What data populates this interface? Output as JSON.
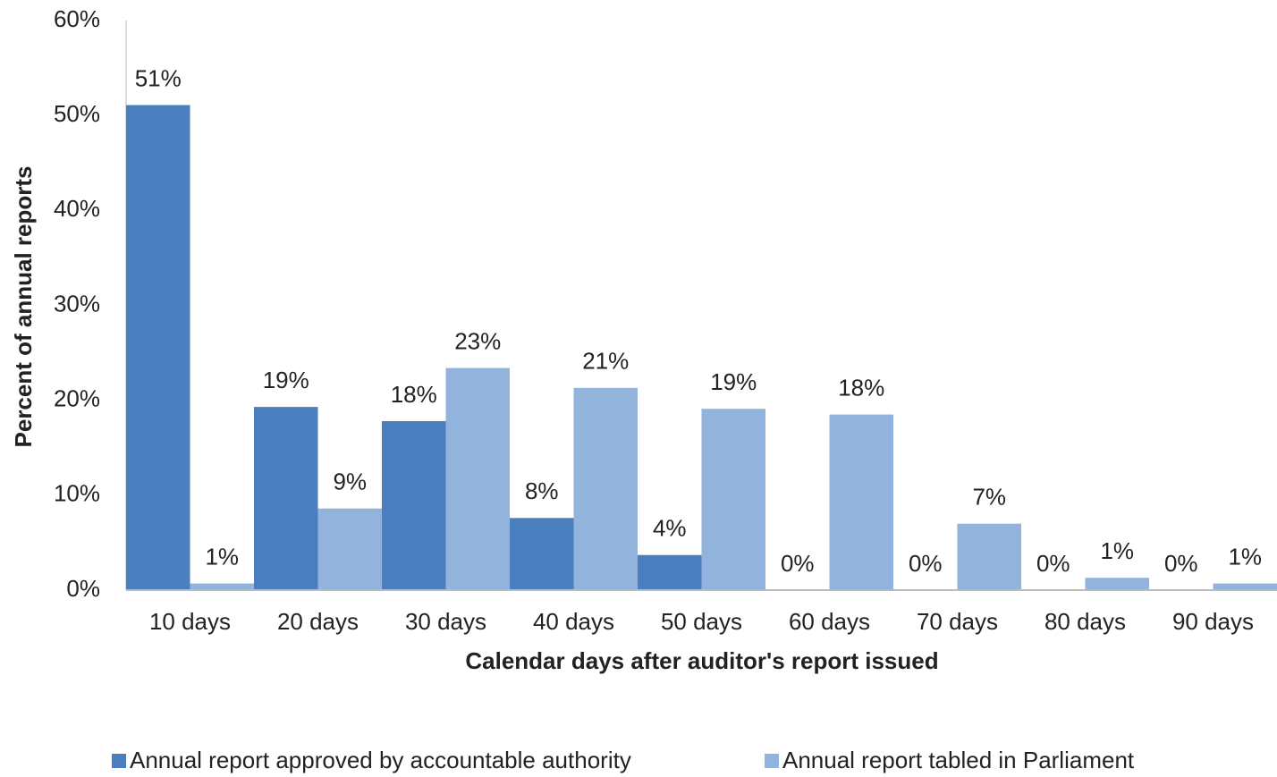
{
  "chart_data": {
    "type": "bar",
    "x_label": "Calendar days after auditor's report issued",
    "y_label": "Percent of annual reports",
    "categories": [
      "10 days",
      "20 days",
      "30 days",
      "40 days",
      "50 days",
      "60 days",
      "70 days",
      "80 days",
      "90 days"
    ],
    "series": [
      {
        "name": "Annual report approved by accountable authority",
        "color": "#4a7ebf",
        "values": [
          51.1,
          19.3,
          17.8,
          7.6,
          3.7,
          0,
          0,
          0,
          0
        ],
        "value_labels": [
          "51%",
          "19%",
          "18%",
          "8%",
          "4%",
          "0%",
          "0%",
          "0%",
          "0%"
        ]
      },
      {
        "name": "Annual report tabled in Parliament",
        "color": "#91b3dc",
        "values": [
          0.7,
          8.6,
          23.4,
          21.3,
          19.1,
          18.5,
          7.0,
          1.3,
          0.7
        ],
        "value_labels": [
          "1%",
          "9%",
          "23%",
          "21%",
          "19%",
          "18%",
          "7%",
          "1%",
          "1%"
        ]
      }
    ],
    "ylim": [
      0,
      60
    ],
    "yticks": [
      {
        "value": 0,
        "label": "0%"
      },
      {
        "value": 10,
        "label": "10%"
      },
      {
        "value": 20,
        "label": "20%"
      },
      {
        "value": 30,
        "label": "30%"
      },
      {
        "value": 40,
        "label": "40%"
      },
      {
        "value": 50,
        "label": "50%"
      },
      {
        "value": 60,
        "label": "60%"
      }
    ],
    "grid": false,
    "legend": "bottom"
  }
}
